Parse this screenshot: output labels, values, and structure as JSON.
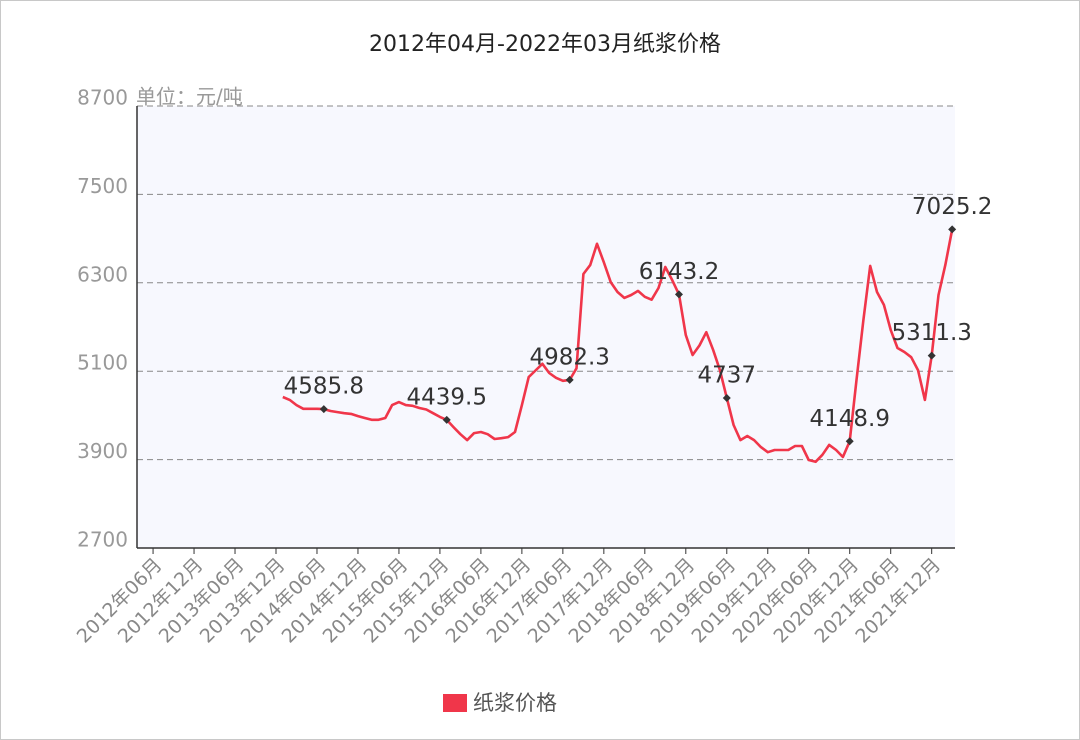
{
  "chart_data": {
    "type": "line",
    "title": "2012年04月-2022年03月纸浆价格",
    "y_label": "单位：元/吨",
    "categories": [
      null,
      null,
      "2012年06月",
      null,
      null,
      null,
      null,
      null,
      "2012年12月",
      null,
      null,
      null,
      null,
      null,
      "2013年06月",
      null,
      null,
      null,
      null,
      null,
      "2013年12月",
      null,
      null,
      null,
      null,
      null,
      "2014年06月",
      null,
      null,
      null,
      null,
      null,
      "2014年12月",
      null,
      null,
      null,
      null,
      null,
      "2015年06月",
      null,
      null,
      null,
      null,
      null,
      "2015年12月",
      null,
      null,
      null,
      null,
      null,
      "2016年06月",
      null,
      null,
      null,
      null,
      null,
      "2016年12月",
      null,
      null,
      null,
      null,
      null,
      "2017年06月",
      null,
      null,
      null,
      null,
      null,
      "2017年12月",
      null,
      null,
      null,
      null,
      null,
      "2018年06月",
      null,
      null,
      null,
      null,
      null,
      "2018年12月",
      null,
      null,
      null,
      null,
      null,
      "2019年06月",
      null,
      null,
      null,
      null,
      null,
      "2019年12月",
      null,
      null,
      null,
      null,
      null,
      "2020年06月",
      null,
      null,
      null,
      null,
      null,
      "2020年12月",
      null,
      null,
      null,
      null,
      null,
      "2021年06月",
      null,
      null,
      null,
      null,
      null,
      "2021年12月",
      null,
      null,
      null
    ],
    "series": [
      {
        "name": "纸浆价格",
        "color": "#f0364a",
        "values": [
          null,
          null,
          null,
          null,
          null,
          null,
          null,
          null,
          null,
          null,
          null,
          null,
          null,
          null,
          null,
          null,
          null,
          null,
          null,
          null,
          null,
          4750,
          4710,
          4640,
          4590,
          4590,
          4590,
          4585.8,
          4560,
          4545,
          4530,
          4520,
          4490,
          4465,
          4440,
          4440,
          4465,
          4640,
          4680,
          4640,
          4630,
          4600,
          4580,
          4530,
          4480,
          4439.5,
          4340,
          4245,
          4165,
          4260,
          4275,
          4245,
          4180,
          4190,
          4205,
          4275,
          4640,
          5020,
          5110,
          5200,
          5075,
          5010,
          4970,
          4982.3,
          5140,
          6420,
          6540,
          6830,
          6580,
          6310,
          6175,
          6095,
          6135,
          6190,
          6110,
          6070,
          6230,
          6515,
          6340,
          6143.2,
          5590,
          5320,
          5450,
          5630,
          5390,
          5115,
          4737,
          4370,
          4165,
          4220,
          4165,
          4070,
          4000,
          4030,
          4030,
          4030,
          4085,
          4085,
          3895,
          3870,
          3965,
          4100,
          4030,
          3935,
          4148.9,
          4980,
          5795,
          6530,
          6175,
          6000,
          5660,
          5415,
          5360,
          5290,
          5115,
          4710,
          5311.3,
          6135,
          6540,
          7025.2
        ],
        "value_labels": [
          null,
          null,
          null,
          null,
          null,
          null,
          null,
          null,
          null,
          null,
          null,
          null,
          null,
          null,
          null,
          null,
          null,
          null,
          null,
          null,
          null,
          null,
          null,
          null,
          null,
          null,
          null,
          "4585.8",
          null,
          null,
          null,
          null,
          null,
          null,
          null,
          null,
          null,
          null,
          null,
          null,
          null,
          null,
          null,
          null,
          null,
          "4439.5",
          null,
          null,
          null,
          null,
          null,
          null,
          null,
          null,
          null,
          null,
          null,
          null,
          null,
          null,
          null,
          null,
          null,
          "4982.3",
          null,
          null,
          null,
          null,
          null,
          null,
          null,
          null,
          null,
          null,
          null,
          null,
          null,
          null,
          null,
          "6143.2",
          null,
          null,
          null,
          null,
          null,
          null,
          "4737",
          null,
          null,
          null,
          null,
          null,
          null,
          null,
          null,
          null,
          null,
          null,
          null,
          null,
          null,
          null,
          null,
          null,
          "4148.9",
          null,
          null,
          null,
          null,
          null,
          null,
          null,
          null,
          null,
          null,
          null,
          "5311.3",
          null,
          null,
          "7025.2"
        ]
      }
    ],
    "ylim": [
      2700,
      8700
    ],
    "yticks": [
      2700,
      3900,
      5100,
      6300,
      7500,
      8700
    ],
    "grid": true,
    "legend": "bottom"
  }
}
